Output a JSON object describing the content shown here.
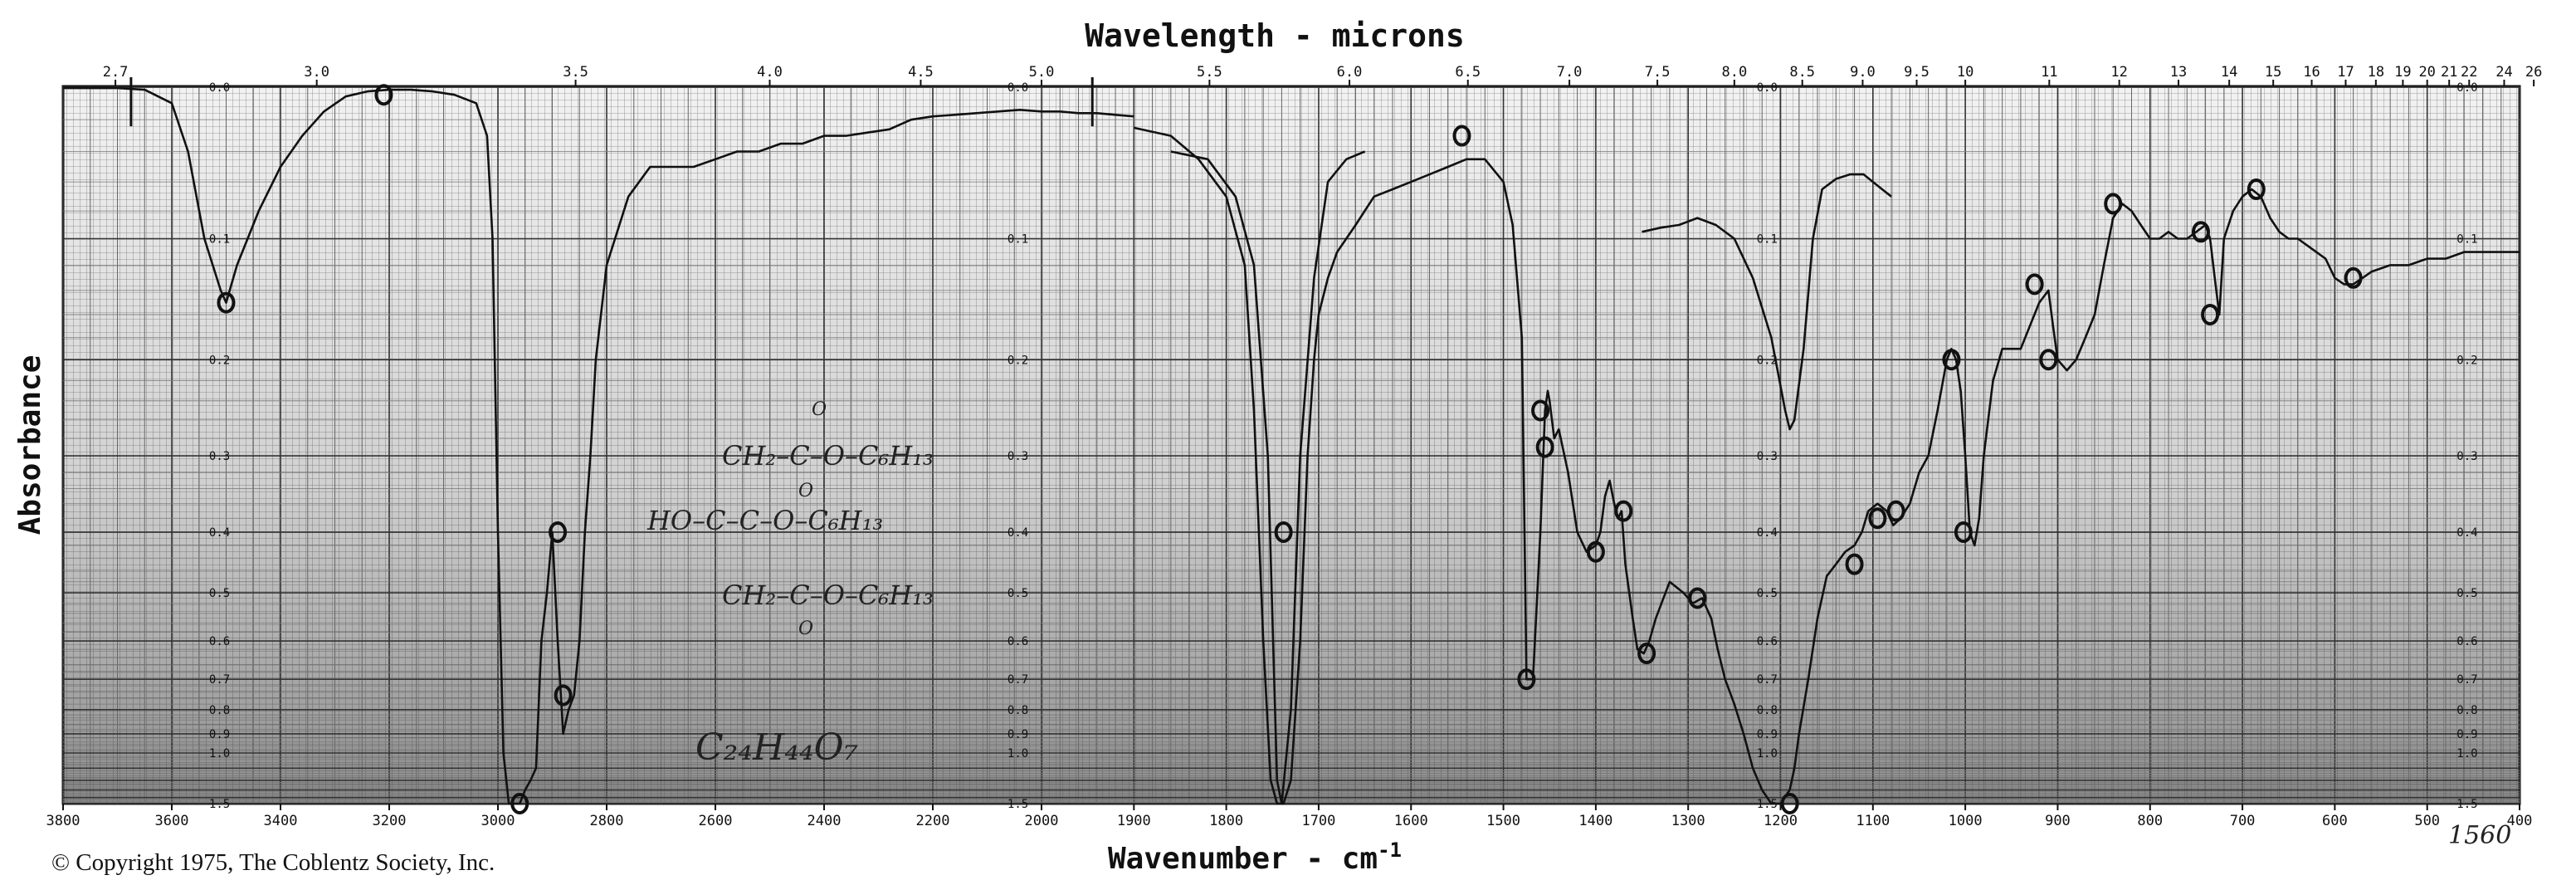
{
  "chart_data": {
    "type": "line",
    "title": "Wavelength - microns",
    "xlabel": "Wavenumber - cm",
    "xlabel_sup": "-1",
    "ylabel": "Absorbance",
    "x_range": [
      3800,
      400
    ],
    "y_range": [
      0.0,
      1.5
    ],
    "wavenumber_ticks": [
      "3800",
      "3600",
      "3400",
      "3200",
      "3000",
      "2800",
      "2600",
      "2400",
      "2200",
      "2000",
      "1900",
      "1800",
      "1700",
      "1600",
      "1500",
      "1400",
      "1300",
      "1200",
      "1100",
      "1000",
      "900",
      "800",
      "700",
      "600",
      "500",
      "400"
    ],
    "wavelength_ticks": [
      "2.7",
      "3.0",
      "3.5",
      "4.0",
      "4.5",
      "5.0",
      "5.5",
      "6.0",
      "6.5",
      "7.0",
      "7.5",
      "8.0",
      "8.5",
      "9.0",
      "9.5",
      "10",
      "11",
      "12",
      "13",
      "14",
      "15",
      "16",
      "17",
      "18",
      "19",
      "20",
      "21",
      "22",
      "24",
      "26"
    ],
    "absorbance_ticks": [
      "0.0",
      "0.1",
      "0.2",
      "0.3",
      "0.4",
      "0.5",
      "0.6",
      "0.7",
      "0.8",
      "0.9",
      "1.0",
      "1.5"
    ],
    "series": [
      {
        "x": [
          3800,
          3750,
          3700,
          3650,
          3600,
          3570,
          3540,
          3510,
          3500,
          3480,
          3440,
          3400,
          3360,
          3320,
          3280,
          3240,
          3200,
          3160,
          3120,
          3080,
          3040,
          3020,
          3010,
          3000,
          2990,
          2980,
          2970,
          2960,
          2950,
          2940,
          2930,
          2920,
          2910,
          2900,
          2890,
          2880,
          2870,
          2860,
          2850,
          2840,
          2830,
          2820,
          2800,
          2760,
          2720,
          2680,
          2640,
          2600,
          2560,
          2520,
          2480,
          2440,
          2400,
          2360,
          2320,
          2280,
          2240,
          2200,
          2160,
          2120,
          2080,
          2040,
          2000,
          1980,
          1960,
          1940,
          1920,
          1900
        ],
        "y": [
          0.001,
          0.001,
          0.001,
          0.002,
          0.01,
          0.04,
          0.1,
          0.14,
          0.15,
          0.12,
          0.08,
          0.05,
          0.03,
          0.015,
          0.006,
          0.003,
          0.002,
          0.002,
          0.003,
          0.005,
          0.01,
          0.03,
          0.1,
          0.4,
          1.0,
          1.5,
          1.5,
          1.5,
          1.3,
          1.2,
          1.1,
          0.6,
          0.5,
          0.4,
          0.6,
          0.9,
          0.8,
          0.75,
          0.6,
          0.4,
          0.3,
          0.2,
          0.12,
          0.07,
          0.05,
          0.05,
          0.05,
          0.045,
          0.04,
          0.04,
          0.035,
          0.035,
          0.03,
          0.03,
          0.028,
          0.026,
          0.02,
          0.018,
          0.017,
          0.016,
          0.015,
          0.014,
          0.015,
          0.015,
          0.016,
          0.016,
          0.017,
          0.018
        ]
      },
      {
        "x": [
          1900,
          1860,
          1830,
          1800,
          1780,
          1770,
          1760,
          1752,
          1745,
          1738,
          1730,
          1720,
          1712,
          1705,
          1700,
          1690,
          1680,
          1660,
          1640,
          1620,
          1600,
          1580,
          1560,
          1540,
          1520,
          1500,
          1490,
          1480,
          1475,
          1468,
          1460,
          1455,
          1452,
          1450,
          1445,
          1440,
          1430,
          1420,
          1410,
          1400,
          1395,
          1390,
          1385,
          1380,
          1376,
          1372,
          1368,
          1360,
          1355,
          1348,
          1342,
          1335,
          1320,
          1305,
          1295,
          1285,
          1275,
          1268,
          1260,
          1250,
          1240,
          1230,
          1220,
          1210,
          1200,
          1190,
          1185,
          1180,
          1170,
          1160,
          1150,
          1140,
          1130,
          1120,
          1112,
          1105,
          1095,
          1085,
          1078,
          1070,
          1060,
          1050,
          1040,
          1030,
          1020,
          1015,
          1010,
          1005,
          1000,
          995,
          990,
          985,
          980,
          970,
          960,
          940,
          920,
          910,
          905,
          900,
          890,
          880,
          870,
          860,
          850,
          840,
          830,
          820,
          810,
          800,
          790,
          780,
          770,
          760,
          750,
          740,
          735,
          730,
          725,
          720,
          710,
          700,
          690,
          680,
          670,
          660,
          650,
          640,
          630,
          620,
          610,
          600,
          590,
          580,
          570,
          560,
          540,
          520,
          500,
          480,
          460,
          440,
          420,
          400
        ],
        "y": [
          0.025,
          0.03,
          0.045,
          0.07,
          0.12,
          0.25,
          0.6,
          1.2,
          1.5,
          1.5,
          1.2,
          0.6,
          0.3,
          0.2,
          0.16,
          0.13,
          0.11,
          0.09,
          0.07,
          0.065,
          0.06,
          0.055,
          0.05,
          0.045,
          0.045,
          0.06,
          0.09,
          0.18,
          0.7,
          0.7,
          0.4,
          0.25,
          0.23,
          0.24,
          0.28,
          0.27,
          0.32,
          0.4,
          0.43,
          0.42,
          0.4,
          0.35,
          0.33,
          0.36,
          0.38,
          0.37,
          0.45,
          0.55,
          0.62,
          0.63,
          0.6,
          0.55,
          0.48,
          0.5,
          0.52,
          0.51,
          0.55,
          0.62,
          0.7,
          0.78,
          0.9,
          1.1,
          1.3,
          1.5,
          1.5,
          1.3,
          1.1,
          0.9,
          0.7,
          0.55,
          0.47,
          0.45,
          0.43,
          0.42,
          0.4,
          0.37,
          0.36,
          0.37,
          0.39,
          0.38,
          0.36,
          0.32,
          0.3,
          0.25,
          0.2,
          0.19,
          0.2,
          0.23,
          0.3,
          0.4,
          0.42,
          0.38,
          0.3,
          0.22,
          0.19,
          0.19,
          0.15,
          0.14,
          0.17,
          0.2,
          0.21,
          0.2,
          0.18,
          0.16,
          0.12,
          0.085,
          0.075,
          0.08,
          0.09,
          0.1,
          0.1,
          0.095,
          0.1,
          0.1,
          0.095,
          0.09,
          0.1,
          0.13,
          0.16,
          0.1,
          0.08,
          0.07,
          0.065,
          0.07,
          0.085,
          0.095,
          0.1,
          0.1,
          0.105,
          0.11,
          0.115,
          0.13,
          0.135,
          0.135,
          0.13,
          0.125,
          0.12,
          0.12,
          0.115,
          0.115,
          0.11,
          0.11,
          0.11,
          0.11
        ]
      },
      {
        "x": [
          1860,
          1820,
          1790,
          1770,
          1755,
          1745,
          1740,
          1730,
          1720,
          1705,
          1690,
          1670,
          1650
        ],
        "y": [
          0.04,
          0.045,
          0.07,
          0.12,
          0.3,
          1.2,
          1.5,
          0.8,
          0.3,
          0.13,
          0.06,
          0.045,
          0.04
        ]
      },
      {
        "x": [
          1350,
          1330,
          1310,
          1290,
          1270,
          1250,
          1230,
          1210,
          1195,
          1190,
          1185,
          1175,
          1165,
          1155,
          1140,
          1125,
          1110,
          1100,
          1090,
          1080
        ],
        "y": [
          0.095,
          0.092,
          0.09,
          0.085,
          0.09,
          0.1,
          0.13,
          0.18,
          0.25,
          0.27,
          0.26,
          0.19,
          0.1,
          0.065,
          0.058,
          0.055,
          0.055,
          0.06,
          0.065,
          0.07
        ]
      }
    ],
    "handwritten_peak_marks": [
      {
        "x": 3500,
        "y": 0.15
      },
      {
        "x": 3210,
        "y": 0.005
      },
      {
        "x": 2960,
        "y": 1.5
      },
      {
        "x": 2890,
        "y": 0.4
      },
      {
        "x": 2880,
        "y": 0.75
      },
      {
        "x": 1738,
        "y": 0.4
      },
      {
        "x": 1545,
        "y": 0.03
      },
      {
        "x": 1475,
        "y": 0.7
      },
      {
        "x": 1460,
        "y": 0.25
      },
      {
        "x": 1455,
        "y": 0.29
      },
      {
        "x": 1400,
        "y": 0.43
      },
      {
        "x": 1370,
        "y": 0.37
      },
      {
        "x": 1345,
        "y": 0.63
      },
      {
        "x": 1290,
        "y": 0.51
      },
      {
        "x": 1190,
        "y": 1.5
      },
      {
        "x": 1120,
        "y": 0.45
      },
      {
        "x": 1095,
        "y": 0.38
      },
      {
        "x": 1075,
        "y": 0.37
      },
      {
        "x": 1015,
        "y": 0.2
      },
      {
        "x": 1002,
        "y": 0.4
      },
      {
        "x": 925,
        "y": 0.135
      },
      {
        "x": 910,
        "y": 0.2
      },
      {
        "x": 840,
        "y": 0.075
      },
      {
        "x": 745,
        "y": 0.095
      },
      {
        "x": 735,
        "y": 0.16
      },
      {
        "x": 685,
        "y": 0.065
      },
      {
        "x": 580,
        "y": 0.13
      }
    ],
    "annotations": {
      "structure_line1": "CH₂–C–O–C₆H₁₃",
      "structure_line2": "HO–C–C–O–C₆H₁₃",
      "structure_line3": "CH₂–C–O–C₆H₁₃",
      "carbonyl_o": "O",
      "formula": "C₂₄H₄₄O₇",
      "corner_mark": "1560"
    },
    "grid": true
  },
  "footer": {
    "copyright": "© Copyright 1975, The Coblentz Society, Inc."
  }
}
